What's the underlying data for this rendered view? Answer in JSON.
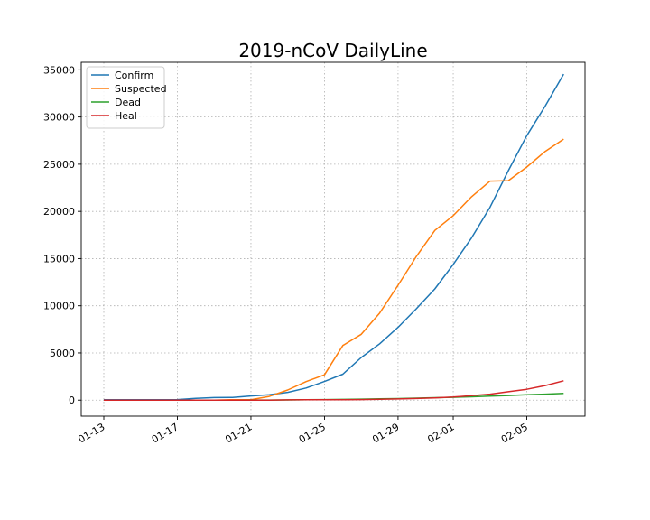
{
  "chart_data": {
    "type": "line",
    "title": "2019-nCoV DailyLine",
    "xlabel": "",
    "ylabel": "",
    "x": [
      "01-13",
      "01-14",
      "01-15",
      "01-16",
      "01-17",
      "01-18",
      "01-19",
      "01-20",
      "01-21",
      "01-22",
      "01-23",
      "01-24",
      "01-25",
      "01-26",
      "01-27",
      "01-28",
      "01-29",
      "01-30",
      "01-31",
      "02-01",
      "02-02",
      "02-03",
      "02-04",
      "02-05",
      "02-06",
      "02-07"
    ],
    "x_ticks": [
      "01-13",
      "01-17",
      "01-21",
      "01-25",
      "01-29",
      "02-01",
      "02-05"
    ],
    "y_ticks": [
      0,
      5000,
      10000,
      15000,
      20000,
      25000,
      30000,
      35000
    ],
    "ylim": [
      -1700,
      35800
    ],
    "grid": true,
    "legend_position": "top-left",
    "series": [
      {
        "name": "Confirm",
        "color": "#1f77b4",
        "values": [
          41,
          41,
          41,
          45,
          62,
          198,
          275,
          291,
          440,
          571,
          830,
          1287,
          1975,
          2744,
          4515,
          5974,
          7711,
          9692,
          11791,
          14380,
          17205,
          20438,
          24324,
          28018,
          31161,
          34546
        ]
      },
      {
        "name": "Suspected",
        "color": "#ff7f0e",
        "values": [
          0,
          0,
          0,
          0,
          0,
          0,
          0,
          54,
          37,
          393,
          1072,
          1965,
          2684,
          5794,
          6973,
          9239,
          12167,
          15238,
          17988,
          19544,
          21558,
          23214,
          23260,
          24702,
          26359,
          27657
        ]
      },
      {
        "name": "Dead",
        "color": "#2ca02c",
        "values": [
          1,
          1,
          1,
          2,
          2,
          3,
          4,
          6,
          9,
          17,
          25,
          41,
          56,
          80,
          106,
          132,
          170,
          213,
          259,
          304,
          361,
          425,
          490,
          563,
          636,
          722
        ]
      },
      {
        "name": "Heal",
        "color": "#d62728",
        "values": [
          0,
          0,
          0,
          0,
          0,
          0,
          0,
          0,
          0,
          0,
          34,
          38,
          49,
          51,
          60,
          103,
          124,
          171,
          243,
          328,
          475,
          632,
          892,
          1153,
          1540,
          2050
        ]
      }
    ]
  }
}
